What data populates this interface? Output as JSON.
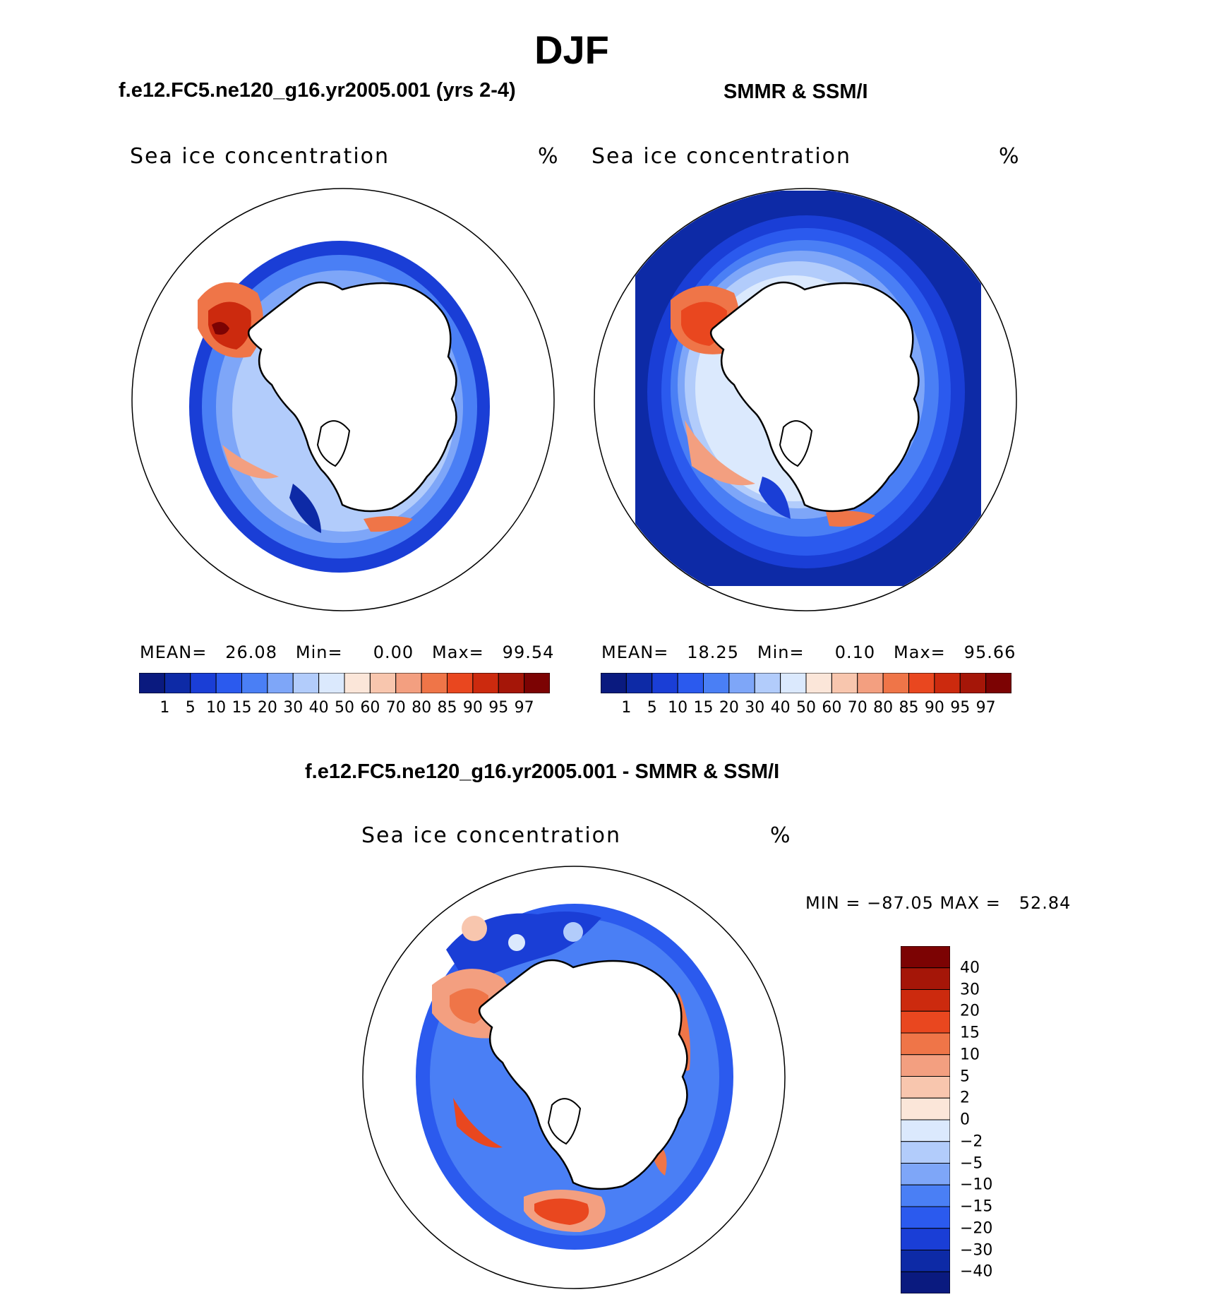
{
  "figure_title": "DJF",
  "chart_data": [
    {
      "type": "heatmap",
      "projection": "south-polar-stereographic",
      "panel_title": "f.e12.FC5.ne120_g16.yr2005.001 (yrs 2-4)",
      "variable": "Sea ice concentration",
      "units": "%",
      "stats": {
        "mean_label": "MEAN=",
        "mean": "26.08",
        "min_label": "Min=",
        "min": "0.00",
        "max_label": "Max=",
        "max": "99.54"
      },
      "colorbar_levels": [
        "1",
        "5",
        "10",
        "15",
        "20",
        "30",
        "40",
        "50",
        "60",
        "70",
        "80",
        "85",
        "90",
        "95",
        "97"
      ]
    },
    {
      "type": "heatmap",
      "projection": "south-polar-stereographic",
      "panel_title": "SMMR & SSM/I",
      "variable": "Sea ice concentration",
      "units": "%",
      "stats": {
        "mean_label": "MEAN=",
        "mean": "18.25",
        "min_label": "Min=",
        "min": "0.10",
        "max_label": "Max=",
        "max": "95.66"
      },
      "colorbar_levels": [
        "1",
        "5",
        "10",
        "15",
        "20",
        "30",
        "40",
        "50",
        "60",
        "70",
        "80",
        "85",
        "90",
        "95",
        "97"
      ]
    },
    {
      "type": "heatmap",
      "projection": "south-polar-stereographic",
      "panel_title": "f.e12.FC5.ne120_g16.yr2005.001 - SMMR & SSM/I",
      "variable": "Sea ice concentration",
      "units": "%",
      "stats_text": "MIN = −87.05 MAX =   52.84",
      "colorbar_levels": [
        "40",
        "30",
        "20",
        "15",
        "10",
        "5",
        "2",
        "0",
        "−2",
        "−5",
        "−10",
        "−15",
        "−20",
        "−30",
        "−40"
      ]
    }
  ],
  "colors": {
    "scale": [
      "#0a1a7f",
      "#0d2aa6",
      "#1a3ed6",
      "#2b5aee",
      "#4a7ff5",
      "#7ea6f8",
      "#b2ccfb",
      "#dbe9fd",
      "#fbe6d9",
      "#f8c6ae",
      "#f39f80",
      "#ef7548",
      "#e9471f",
      "#cc2a0e",
      "#a51608",
      "#7c0303"
    ],
    "land": "#ffffff",
    "coast": "#000000"
  }
}
